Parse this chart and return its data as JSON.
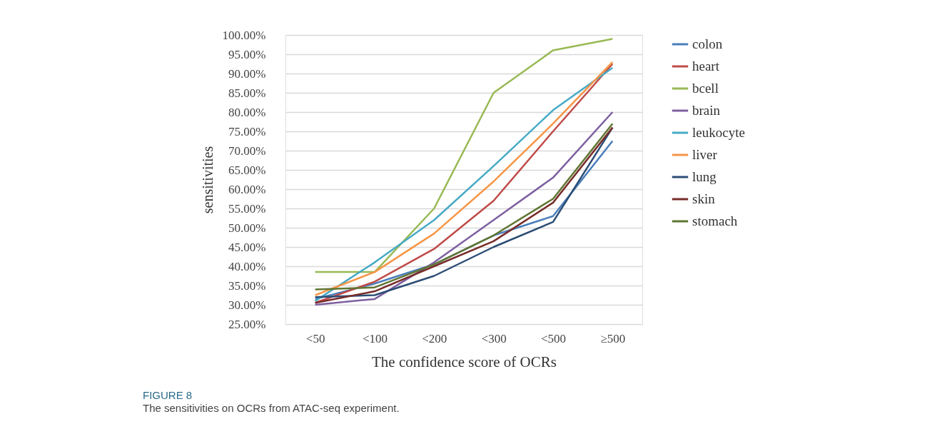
{
  "chart_data": {
    "type": "line",
    "xlabel": "The confidence score of OCRs",
    "ylabel": "sensitivities",
    "categories": [
      "<50",
      "<100",
      "<200",
      "<300",
      "<500",
      "≥500"
    ],
    "series": [
      {
        "name": "colon",
        "color": "#4a7ebb",
        "values": [
          31.5,
          35.5,
          40.5,
          48,
          53,
          72.5
        ]
      },
      {
        "name": "heart",
        "color": "#be4b48",
        "values": [
          30.5,
          36,
          44.5,
          57,
          75,
          92.5
        ]
      },
      {
        "name": "bcell",
        "color": "#98b954",
        "values": [
          38.5,
          38.5,
          55,
          85,
          96,
          99
        ]
      },
      {
        "name": "brain",
        "color": "#7d5fa0",
        "values": [
          30,
          31.5,
          41,
          52,
          63,
          80
        ]
      },
      {
        "name": "leukocyte",
        "color": "#46aac5",
        "values": [
          31,
          41,
          52,
          66,
          80.5,
          91.5
        ]
      },
      {
        "name": "liver",
        "color": "#f69546",
        "values": [
          32.5,
          38.5,
          48.5,
          62,
          77,
          93
        ]
      },
      {
        "name": "lung",
        "color": "#2c4d75",
        "values": [
          32,
          32.5,
          37.5,
          45,
          51.5,
          76
        ]
      },
      {
        "name": "skin",
        "color": "#772c2a",
        "values": [
          30.5,
          33.5,
          40,
          46.5,
          56.5,
          76
        ]
      },
      {
        "name": "stomach",
        "color": "#5f7530",
        "values": [
          34,
          34.5,
          40.5,
          48,
          57.5,
          77
        ]
      }
    ],
    "ylim": [
      25,
      100
    ],
    "yticks": [
      {
        "value": 25,
        "label": "25.00%"
      },
      {
        "value": 30,
        "label": "30.00%"
      },
      {
        "value": 35,
        "label": "35.00%"
      },
      {
        "value": 40,
        "label": "40.00%"
      },
      {
        "value": 45,
        "label": "45.00%"
      },
      {
        "value": 50,
        "label": "50.00%"
      },
      {
        "value": 55,
        "label": "55.00%"
      },
      {
        "value": 60,
        "label": "60.00%"
      },
      {
        "value": 65,
        "label": "65.00%"
      },
      {
        "value": 70,
        "label": "70.00%"
      },
      {
        "value": 75,
        "label": "75.00%"
      },
      {
        "value": 80,
        "label": "80.00%"
      },
      {
        "value": 85,
        "label": "85.00%"
      },
      {
        "value": 90,
        "label": "90.00%"
      },
      {
        "value": 95,
        "label": "95.00%"
      },
      {
        "value": 100,
        "label": "100.00%"
      }
    ],
    "grid": "y",
    "legend": "right",
    "marker": "none",
    "line_style": "solid",
    "annotations": [
      "FIGURE 8",
      "The sensitivities on OCRs from ATAC-seq experiment."
    ]
  }
}
